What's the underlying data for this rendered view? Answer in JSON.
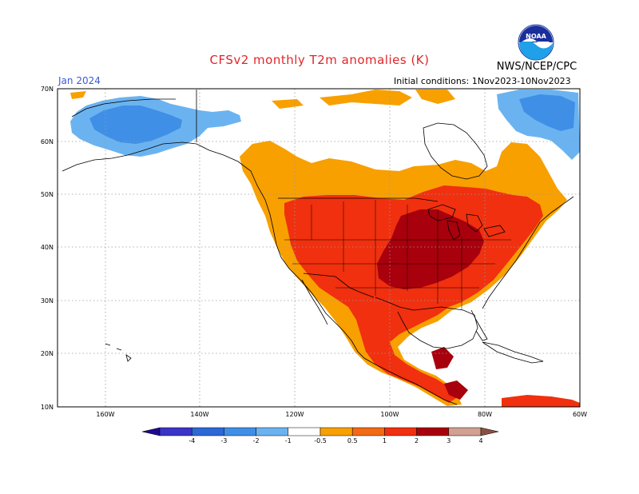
{
  "header": {
    "title": "CFSv2 monthly T2m anomalies (K)",
    "agency": "NWS/NCEP/CPC",
    "month": "Jan 2024",
    "initial_conditions": "Initial conditions: 1Nov2023-10Nov2023",
    "logo_text": "NOAA"
  },
  "axes": {
    "lat_labels": [
      "70N",
      "60N",
      "50N",
      "40N",
      "30N",
      "20N",
      "10N"
    ],
    "lon_labels": [
      "160W",
      "140W",
      "120W",
      "100W",
      "80W",
      "60W"
    ]
  },
  "colorbar": {
    "labels": [
      "-4",
      "-3",
      "-2",
      "-1",
      "-0.5",
      "0.5",
      "1",
      "2",
      "3",
      "4"
    ],
    "colors": [
      "#1e0a8c",
      "#3a34c8",
      "#2c68d6",
      "#3f8fe6",
      "#6bb3f0",
      "#ffffff",
      "#f8a000",
      "#f26a14",
      "#f0300f",
      "#a8000c",
      "#d0a090",
      "#8c5040"
    ]
  },
  "colors": {
    "ocean": "#ffffff",
    "anom_0_5_1": "#f8a000",
    "anom_1_2": "#f0300f",
    "anom_2_3": "#a8000c",
    "anom_neg_1_0_5": "#6bb3f0",
    "anom_neg_2_1": "#3f8fe6",
    "brand_blue": "#1a6fd6"
  }
}
